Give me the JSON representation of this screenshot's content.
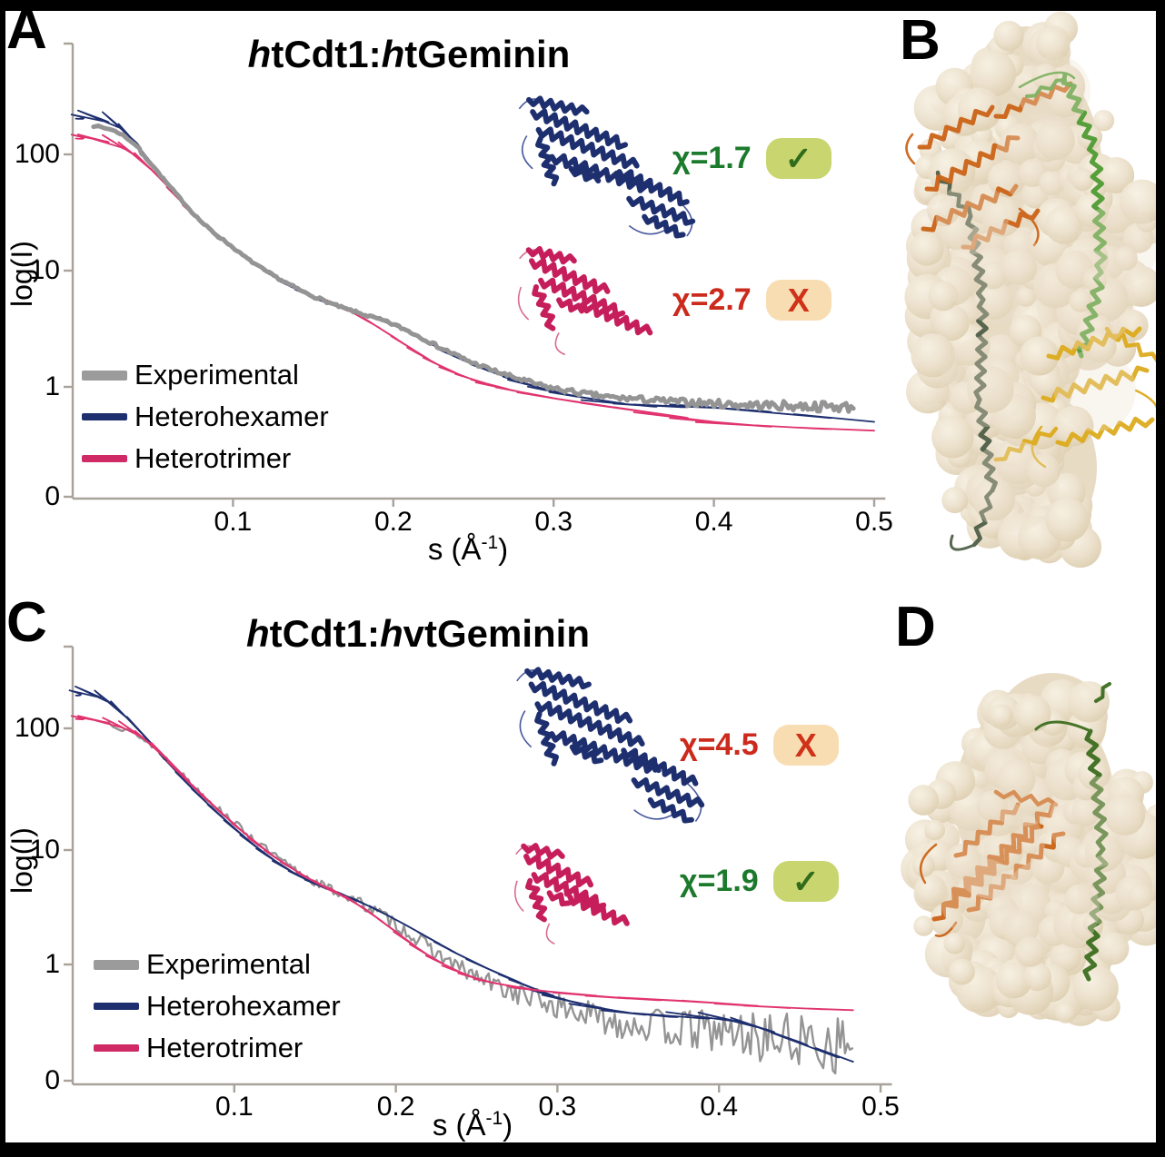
{
  "figure_labels": {
    "a": "A",
    "b": "B",
    "c": "C",
    "d": "D"
  },
  "colors": {
    "experimental": "#949494",
    "heterohexamer": "#1e2f6f",
    "heterotrimer": "#e0336f",
    "axis": "#a8a29a",
    "swatch_experimental": "#9b9b9b",
    "swatch_heterohexamer": "#1e2f6f",
    "swatch_heterotrimer": "#cf2a66",
    "check_badge_bg": "#c9d56f",
    "check_mark": "#2f6d1a",
    "cross_badge_bg": "#f8ddb2",
    "cross_mark": "#d03118",
    "chi_good": "#1b7a2b",
    "chi_bad": "#cb2a1c",
    "surface": "#ece1cd",
    "surface_shade": "#ddcfb2",
    "surface_highlight": "#f6f0e3",
    "ribbon_orange": "#cc6418",
    "ribbon_green_bright": "#4f9c33",
    "ribbon_green_dark": "#3c6e1f",
    "ribbon_olive": "#505f48",
    "ribbon_yellow": "#ddab1e",
    "cartoon_blue": "#1e2f6f",
    "cartoon_blue_loop": "#4a5a9e",
    "cartoon_pink": "#c51e5a",
    "cartoon_pink_loop": "#d96d92"
  },
  "chart_data": [
    {
      "type": "line",
      "panel": "A",
      "title_parts": {
        "i1": "h",
        "t1": "tCdt1:",
        "i2": "h",
        "t2": "tGeminin"
      },
      "ylabel": "log(I)",
      "xlabel_parts": {
        "pre": "s (Å",
        "sup": "-1",
        "post": ")"
      },
      "yscale": "log",
      "xlim": [
        0,
        0.5
      ],
      "xticks": [
        "0.1",
        "0.2",
        "0.3",
        "0.4",
        "0.5"
      ],
      "ytick_labels": [
        "100",
        "10",
        "1",
        "0"
      ],
      "legend": [
        "Experimental",
        "Heterohexamer",
        "Heterotrimer"
      ],
      "series": [
        {
          "name": "Experimental",
          "color_key": "experimental",
          "width": 5,
          "noise_base": 0.006,
          "noise_grow": 0.17,
          "noise_pow": 2,
          "seed": 7,
          "points": [
            [
              0.013,
              175
            ],
            [
              0.02,
              168
            ],
            [
              0.03,
              150
            ],
            [
              0.04,
              118
            ],
            [
              0.05,
              80
            ],
            [
              0.06,
              54
            ],
            [
              0.07,
              37.5
            ],
            [
              0.08,
              26.5
            ],
            [
              0.09,
              20
            ],
            [
              0.1,
              15.8
            ],
            [
              0.11,
              12.4
            ],
            [
              0.12,
              10
            ],
            [
              0.13,
              8.3
            ],
            [
              0.14,
              7.0
            ],
            [
              0.15,
              6.0
            ],
            [
              0.16,
              5.3
            ],
            [
              0.17,
              4.7
            ],
            [
              0.18,
              4.25
            ],
            [
              0.19,
              3.85
            ],
            [
              0.2,
              3.45
            ],
            [
              0.21,
              3.0
            ],
            [
              0.22,
              2.55
            ],
            [
              0.23,
              2.15
            ],
            [
              0.24,
              1.85
            ],
            [
              0.25,
              1.6
            ],
            [
              0.26,
              1.42
            ],
            [
              0.27,
              1.27
            ],
            [
              0.28,
              1.15
            ],
            [
              0.29,
              1.05
            ],
            [
              0.3,
              0.97
            ],
            [
              0.32,
              0.87
            ],
            [
              0.34,
              0.8
            ],
            [
              0.36,
              0.77
            ],
            [
              0.38,
              0.74
            ],
            [
              0.4,
              0.72
            ],
            [
              0.42,
              0.7
            ],
            [
              0.44,
              0.69
            ],
            [
              0.46,
              0.68
            ],
            [
              0.488,
              0.67
            ]
          ]
        },
        {
          "name": "Heterohexamer",
          "color_key": "heterohexamer",
          "width": 1.8,
          "points": [
            [
              0.002,
              203
            ],
            [
              0.02,
              192
            ],
            [
              0.03,
              168
            ],
            [
              0.04,
              125
            ],
            [
              0.05,
              82
            ],
            [
              0.06,
              55
            ],
            [
              0.07,
              38
            ],
            [
              0.08,
              27
            ],
            [
              0.09,
              20.5
            ],
            [
              0.1,
              16
            ],
            [
              0.11,
              12.5
            ],
            [
              0.12,
              10
            ],
            [
              0.13,
              8.2
            ],
            [
              0.14,
              6.9
            ],
            [
              0.15,
              5.9
            ],
            [
              0.16,
              5.2
            ],
            [
              0.17,
              4.65
            ],
            [
              0.18,
              4.2
            ],
            [
              0.19,
              3.8
            ],
            [
              0.2,
              3.4
            ],
            [
              0.21,
              2.95
            ],
            [
              0.22,
              2.5
            ],
            [
              0.23,
              2.1
            ],
            [
              0.24,
              1.8
            ],
            [
              0.25,
              1.55
            ],
            [
              0.26,
              1.38
            ],
            [
              0.27,
              1.22
            ],
            [
              0.28,
              1.1
            ],
            [
              0.29,
              1.0
            ],
            [
              0.3,
              0.92
            ],
            [
              0.32,
              0.8
            ],
            [
              0.34,
              0.73
            ],
            [
              0.36,
              0.68
            ],
            [
              0.38,
              0.67
            ],
            [
              0.4,
              0.66
            ],
            [
              0.43,
              0.62
            ],
            [
              0.46,
              0.56
            ],
            [
              0.5,
              0.5
            ]
          ]
        },
        {
          "name": "Heterotrimer",
          "color_key": "heterotrimer",
          "width": 1.8,
          "points": [
            [
              0.002,
              137
            ],
            [
              0.02,
              130
            ],
            [
              0.03,
              115
            ],
            [
              0.04,
              96
            ],
            [
              0.05,
              72
            ],
            [
              0.06,
              52
            ],
            [
              0.07,
              37
            ],
            [
              0.08,
              26.5
            ],
            [
              0.09,
              20
            ],
            [
              0.1,
              15.8
            ],
            [
              0.11,
              12.4
            ],
            [
              0.12,
              10
            ],
            [
              0.13,
              8.3
            ],
            [
              0.14,
              7.0
            ],
            [
              0.15,
              6.0
            ],
            [
              0.16,
              5.25
            ],
            [
              0.17,
              4.6
            ],
            [
              0.18,
              4.0
            ],
            [
              0.19,
              3.3
            ],
            [
              0.2,
              2.7
            ],
            [
              0.21,
              2.2
            ],
            [
              0.22,
              1.8
            ],
            [
              0.23,
              1.5
            ],
            [
              0.24,
              1.3
            ],
            [
              0.25,
              1.15
            ],
            [
              0.26,
              1.05
            ],
            [
              0.27,
              0.97
            ],
            [
              0.28,
              0.9
            ],
            [
              0.3,
              0.8
            ],
            [
              0.32,
              0.72
            ],
            [
              0.34,
              0.66
            ],
            [
              0.36,
              0.6
            ],
            [
              0.38,
              0.55
            ],
            [
              0.4,
              0.5
            ],
            [
              0.43,
              0.46
            ],
            [
              0.46,
              0.44
            ],
            [
              0.5,
              0.42
            ]
          ]
        }
      ],
      "annotations": [
        {
          "text": "χ=1.7",
          "quality": "good",
          "glyph": "✓"
        },
        {
          "text": "χ=2.7",
          "quality": "bad",
          "glyph": "X"
        }
      ]
    },
    {
      "type": "line",
      "panel": "C",
      "title_parts": {
        "i1": "h",
        "t1": "tCdt1:",
        "i2": "h",
        "t2": "vtGeminin"
      },
      "ylabel": "log(I)",
      "xlabel_parts": {
        "pre": "s (Å",
        "sup": "-1",
        "post": ")"
      },
      "yscale": "log",
      "xlim": [
        0,
        0.5
      ],
      "xticks": [
        "0.1",
        "0.2",
        "0.3",
        "0.4",
        "0.5"
      ],
      "ytick_labels": [
        "100",
        "10",
        "1",
        "0"
      ],
      "legend": [
        "Experimental",
        "Heterohexamer",
        "Heterotrimer"
      ],
      "series": [
        {
          "name": "Experimental",
          "color_key": "experimental",
          "width": 2.4,
          "noise_base": 0.02,
          "noise_grow": 1.25,
          "noise_pow": 2.2,
          "seed": 13,
          "points": [
            [
              0.022,
              112
            ],
            [
              0.03,
              100
            ],
            [
              0.04,
              88
            ],
            [
              0.05,
              70
            ],
            [
              0.06,
              52
            ],
            [
              0.07,
              38
            ],
            [
              0.08,
              28
            ],
            [
              0.09,
              21
            ],
            [
              0.1,
              16
            ],
            [
              0.11,
              12.2
            ],
            [
              0.12,
              9.4
            ],
            [
              0.13,
              7.4
            ],
            [
              0.14,
              6.0
            ],
            [
              0.15,
              5.0
            ],
            [
              0.16,
              4.3
            ],
            [
              0.17,
              3.75
            ],
            [
              0.18,
              3.2
            ],
            [
              0.19,
              2.7
            ],
            [
              0.2,
              2.2
            ],
            [
              0.21,
              1.75
            ],
            [
              0.22,
              1.4
            ],
            [
              0.23,
              1.12
            ],
            [
              0.24,
              0.92
            ],
            [
              0.25,
              0.78
            ],
            [
              0.26,
              0.68
            ],
            [
              0.27,
              0.6
            ],
            [
              0.28,
              0.54
            ],
            [
              0.29,
              0.49
            ],
            [
              0.3,
              0.44
            ],
            [
              0.32,
              0.37
            ],
            [
              0.34,
              0.32
            ],
            [
              0.36,
              0.3
            ],
            [
              0.38,
              0.28
            ],
            [
              0.4,
              0.27
            ],
            [
              0.42,
              0.25
            ],
            [
              0.44,
              0.23
            ],
            [
              0.46,
              0.22
            ],
            [
              0.483,
              0.21
            ]
          ]
        },
        {
          "name": "Heterohexamer",
          "color_key": "heterohexamer",
          "width": 1.8,
          "points": [
            [
              0.002,
              190
            ],
            [
              0.015,
              185
            ],
            [
              0.025,
              160
            ],
            [
              0.035,
              118
            ],
            [
              0.045,
              84
            ],
            [
              0.055,
              60
            ],
            [
              0.065,
              42
            ],
            [
              0.075,
              30
            ],
            [
              0.085,
              22
            ],
            [
              0.095,
              16.5
            ],
            [
              0.105,
              12.5
            ],
            [
              0.115,
              9.6
            ],
            [
              0.125,
              7.6
            ],
            [
              0.135,
              6.2
            ],
            [
              0.145,
              5.2
            ],
            [
              0.155,
              4.5
            ],
            [
              0.165,
              3.95
            ],
            [
              0.175,
              3.5
            ],
            [
              0.185,
              3.05
            ],
            [
              0.195,
              2.6
            ],
            [
              0.205,
              2.2
            ],
            [
              0.215,
              1.85
            ],
            [
              0.225,
              1.55
            ],
            [
              0.235,
              1.3
            ],
            [
              0.245,
              1.1
            ],
            [
              0.255,
              0.95
            ],
            [
              0.265,
              0.82
            ],
            [
              0.275,
              0.72
            ],
            [
              0.285,
              0.63
            ],
            [
              0.295,
              0.56
            ],
            [
              0.31,
              0.48
            ],
            [
              0.33,
              0.42
            ],
            [
              0.35,
              0.38
            ],
            [
              0.37,
              0.36
            ],
            [
              0.39,
              0.35
            ],
            [
              0.41,
              0.33
            ],
            [
              0.43,
              0.28
            ],
            [
              0.45,
              0.22
            ],
            [
              0.47,
              0.17
            ],
            [
              0.483,
              0.15
            ]
          ]
        },
        {
          "name": "Heterotrimer",
          "color_key": "heterotrimer",
          "width": 1.8,
          "points": [
            [
              0.002,
              120
            ],
            [
              0.02,
              113
            ],
            [
              0.03,
              102
            ],
            [
              0.04,
              88
            ],
            [
              0.05,
              71
            ],
            [
              0.06,
              52
            ],
            [
              0.07,
              38
            ],
            [
              0.08,
              27
            ],
            [
              0.09,
              20.5
            ],
            [
              0.1,
              15.5
            ],
            [
              0.11,
              11.8
            ],
            [
              0.12,
              9.2
            ],
            [
              0.13,
              7.3
            ],
            [
              0.14,
              6.0
            ],
            [
              0.15,
              5.0
            ],
            [
              0.16,
              4.2
            ],
            [
              0.17,
              3.6
            ],
            [
              0.18,
              3.0
            ],
            [
              0.19,
              2.4
            ],
            [
              0.2,
              1.9
            ],
            [
              0.21,
              1.5
            ],
            [
              0.22,
              1.2
            ],
            [
              0.23,
              1.0
            ],
            [
              0.24,
              0.86
            ],
            [
              0.25,
              0.76
            ],
            [
              0.26,
              0.7
            ],
            [
              0.27,
              0.66
            ],
            [
              0.28,
              0.63
            ],
            [
              0.29,
              0.6
            ],
            [
              0.3,
              0.58
            ],
            [
              0.32,
              0.55
            ],
            [
              0.34,
              0.52
            ],
            [
              0.36,
              0.5
            ],
            [
              0.38,
              0.49
            ],
            [
              0.4,
              0.47
            ],
            [
              0.42,
              0.45
            ],
            [
              0.44,
              0.43
            ],
            [
              0.46,
              0.42
            ],
            [
              0.483,
              0.41
            ]
          ]
        }
      ],
      "annotations": [
        {
          "text": "χ=4.5",
          "quality": "bad",
          "glyph": "X"
        },
        {
          "text": "χ=1.9",
          "quality": "good",
          "glyph": "✓"
        }
      ]
    }
  ]
}
